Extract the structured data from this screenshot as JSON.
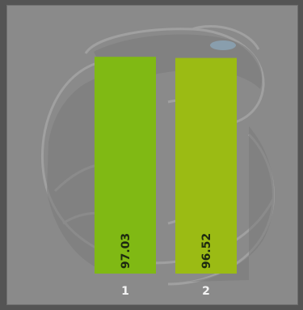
{
  "chart_data": {
    "type": "bar",
    "categories": [
      "1",
      "2"
    ],
    "values": [
      97.03,
      96.52
    ],
    "colors": [
      "#80b914",
      "#9bbb14"
    ],
    "ylim": [
      0,
      100
    ],
    "grid": false,
    "value_labels": [
      "97.03",
      "96.52"
    ]
  },
  "theme": {
    "page_background": "#545454",
    "plot_background": "#8a8a8a",
    "watermark": "serpent-logo"
  }
}
